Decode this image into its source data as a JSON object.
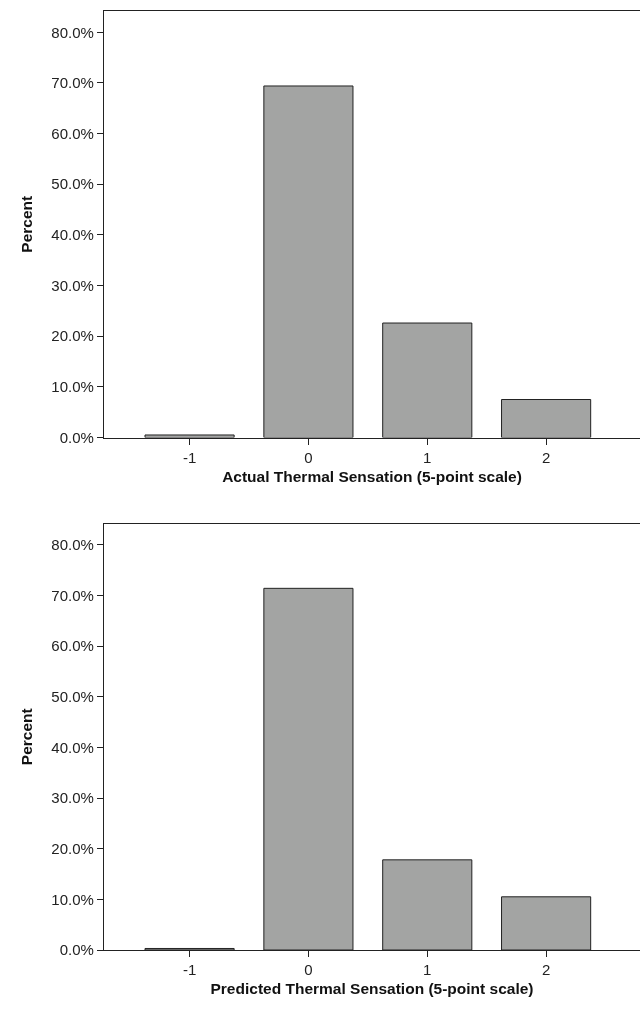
{
  "chart_data": [
    {
      "type": "bar",
      "xlabel": "Actual Thermal Sensation (5-point scale)",
      "ylabel": "Percent",
      "categories": [
        "-1",
        "0",
        "1",
        "2"
      ],
      "values": [
        0.5,
        69.4,
        22.6,
        7.5
      ],
      "color": "#a3a4a3",
      "ylim": [
        0,
        84.2
      ],
      "yticks": [
        {
          "value": 0,
          "label": "0.0%"
        },
        {
          "value": 10,
          "label": "10.0%"
        },
        {
          "value": 20,
          "label": "20.0%"
        },
        {
          "value": 30,
          "label": "30.0%"
        },
        {
          "value": 40,
          "label": "40.0%"
        },
        {
          "value": 50,
          "label": "50.0%"
        },
        {
          "value": 60,
          "label": "60.0%"
        },
        {
          "value": 70,
          "label": "70.0%"
        },
        {
          "value": 80,
          "label": "80.0%"
        }
      ]
    },
    {
      "type": "bar",
      "xlabel": "Predicted Thermal Sensation (5-point scale)",
      "ylabel": "Percent",
      "categories": [
        "-1",
        "0",
        "1",
        "2"
      ],
      "values": [
        0.3,
        71.4,
        17.8,
        10.5
      ],
      "color": "#a3a4a3",
      "ylim": [
        0,
        84.2
      ],
      "yticks": [
        {
          "value": 0,
          "label": "0.0%"
        },
        {
          "value": 10,
          "label": "10.0%"
        },
        {
          "value": 20,
          "label": "20.0%"
        },
        {
          "value": 30,
          "label": "30.0%"
        },
        {
          "value": 40,
          "label": "40.0%"
        },
        {
          "value": 50,
          "label": "50.0%"
        },
        {
          "value": 60,
          "label": "60.0%"
        },
        {
          "value": 70,
          "label": "70.0%"
        },
        {
          "value": 80,
          "label": "80.0%"
        }
      ]
    }
  ]
}
